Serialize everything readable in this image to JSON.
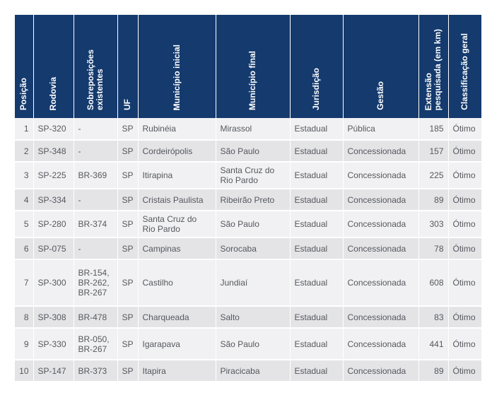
{
  "headers": {
    "posicao": "Posição",
    "rodovia": "Rodovia",
    "sobreposicoes": "Sobreposições\nexistentes",
    "uf": "UF",
    "municipio_inicial": "Município inicial",
    "municipio_final": "Município final",
    "jurisdicao": "Jurisdição",
    "gestao": "Gestão",
    "extensao": "Extensão\npesquisada (em km)",
    "classificacao": "Classificação geral"
  },
  "colors": {
    "header_bg": "#143a6e",
    "row_light": "#f1f1f3",
    "row_dark": "#e4e4e7",
    "text": "#55585e"
  },
  "rows": [
    {
      "posicao": "1",
      "rodovia": "SP-320",
      "sobreposicoes": "-",
      "uf": "SP",
      "municipio_inicial": "Rubinéia",
      "municipio_final": "Mirassol",
      "jurisdicao": "Estadual",
      "gestao": "Pública",
      "extensao": "185",
      "classificacao": "Ótimo"
    },
    {
      "posicao": "2",
      "rodovia": "SP-348",
      "sobreposicoes": "-",
      "uf": "SP",
      "municipio_inicial": "Cordeirópolis",
      "municipio_final": "São Paulo",
      "jurisdicao": "Estadual",
      "gestao": "Concessionada",
      "extensao": "157",
      "classificacao": "Ótimo"
    },
    {
      "posicao": "3",
      "rodovia": "SP-225",
      "sobreposicoes": "BR-369",
      "uf": "SP",
      "municipio_inicial": "Itirapina",
      "municipio_final": "Santa Cruz do\nRio Pardo",
      "jurisdicao": "Estadual",
      "gestao": "Concessionada",
      "extensao": "225",
      "classificacao": "Ótimo"
    },
    {
      "posicao": "4",
      "rodovia": "SP-334",
      "sobreposicoes": "-",
      "uf": "SP",
      "municipio_inicial": "Cristais Paulista",
      "municipio_final": "Ribeirão Preto",
      "jurisdicao": "Estadual",
      "gestao": "Concessionada",
      "extensao": "89",
      "classificacao": "Ótimo"
    },
    {
      "posicao": "5",
      "rodovia": "SP-280",
      "sobreposicoes": "BR-374",
      "uf": "SP",
      "municipio_inicial": "Santa Cruz do\nRio Pardo",
      "municipio_final": "São Paulo",
      "jurisdicao": "Estadual",
      "gestao": "Concessionada",
      "extensao": "303",
      "classificacao": "Ótimo"
    },
    {
      "posicao": "6",
      "rodovia": "SP-075",
      "sobreposicoes": "-",
      "uf": "SP",
      "municipio_inicial": "Campinas",
      "municipio_final": "Sorocaba",
      "jurisdicao": "Estadual",
      "gestao": "Concessionada",
      "extensao": "78",
      "classificacao": "Ótimo"
    },
    {
      "posicao": "7",
      "rodovia": "SP-300",
      "sobreposicoes": "BR-154,\nBR-262,\nBR-267",
      "uf": "SP",
      "municipio_inicial": "Castilho",
      "municipio_final": "Jundiaí",
      "jurisdicao": "Estadual",
      "gestao": "Concessionada",
      "extensao": "608",
      "classificacao": "Ótimo"
    },
    {
      "posicao": "8",
      "rodovia": "SP-308",
      "sobreposicoes": "BR-478",
      "uf": "SP",
      "municipio_inicial": "Charqueada",
      "municipio_final": "Salto",
      "jurisdicao": "Estadual",
      "gestao": "Concessionada",
      "extensao": "83",
      "classificacao": "Ótimo"
    },
    {
      "posicao": "9",
      "rodovia": "SP-330",
      "sobreposicoes": "BR-050,\nBR-267",
      "uf": "SP",
      "municipio_inicial": "Igarapava",
      "municipio_final": "São Paulo",
      "jurisdicao": "Estadual",
      "gestao": "Concessionada",
      "extensao": "441",
      "classificacao": "Ótimo"
    },
    {
      "posicao": "10",
      "rodovia": "SP-147",
      "sobreposicoes": "BR-373",
      "uf": "SP",
      "municipio_inicial": "Itapira",
      "municipio_final": "Piracicaba",
      "jurisdicao": "Estadual",
      "gestao": "Concessionada",
      "extensao": "89",
      "classificacao": "Ótimo"
    }
  ]
}
